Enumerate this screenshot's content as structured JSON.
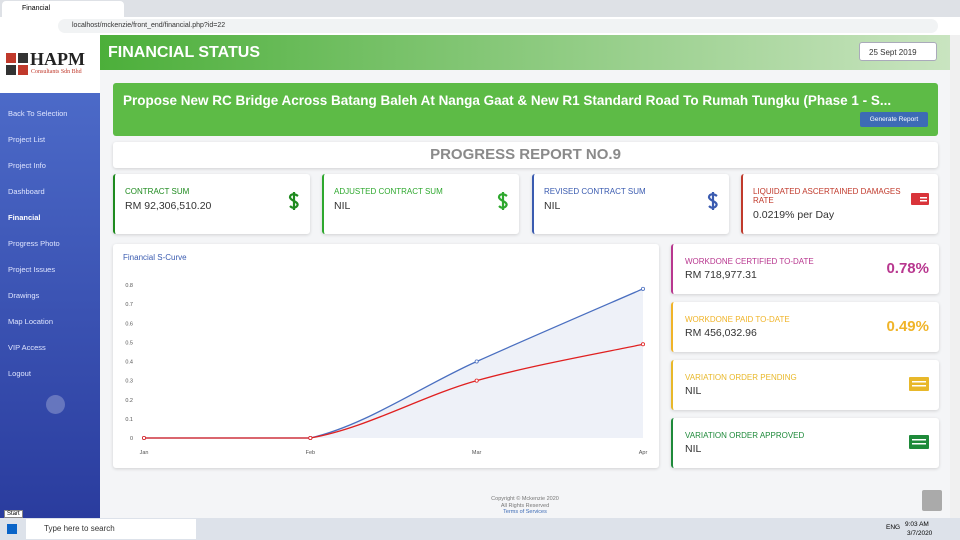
{
  "browser": {
    "tab": "Financial",
    "url": "localhost/mckenzie/front_end/financial.php?id=22"
  },
  "sidebar": {
    "logo": "HAPM",
    "company": "Consultants Sdn Bhd",
    "menu": [
      "Back To Selection",
      "Project List",
      "Project Info",
      "Dashboard",
      "Financial",
      "Progress Photo",
      "Project Issues",
      "Drawings",
      "Map Location",
      "VIP Access",
      "Logout"
    ],
    "active": 4
  },
  "header": {
    "title": "FINANCIAL STATUS",
    "date": "25 Sept 2019"
  },
  "project": {
    "title": "Propose New RC Bridge Across Batang Baleh At Nanga Gaat & New R1 Standard Road To Rumah Tungku (Phase 1 - S...",
    "button": "Generate Report"
  },
  "report": "PROGRESS REPORT NO.9",
  "cards": [
    {
      "label": "CONTRACT SUM",
      "value": "RM 92,306,510.20"
    },
    {
      "label": "ADJUSTED CONTRACT SUM",
      "value": "NIL"
    },
    {
      "label": "REVISED CONTRACT SUM",
      "value": "NIL"
    },
    {
      "label": "LIQUIDATED ASCERTAINED DAMAGES RATE",
      "value": "0.0219% per Day"
    }
  ],
  "side_cards": [
    {
      "label": "WORKDONE CERTIFIED TO-DATE",
      "value": "RM 718,977.31",
      "percent": "0.78%"
    },
    {
      "label": "WORKDONE PAID TO-DATE",
      "value": "RM 456,032.96",
      "percent": "0.49%"
    },
    {
      "label": "VARIATION ORDER PENDING",
      "value": "NIL"
    },
    {
      "label": "VARIATION ORDER APPROVED",
      "value": "NIL"
    }
  ],
  "chart": {
    "type": "line",
    "title": "Financial S-Curve",
    "categories": [
      "Jan",
      "Feb",
      "Mar",
      "Apr"
    ],
    "series": [
      {
        "color": "#4a6fc0",
        "values": [
          0,
          0,
          0.4,
          0.78
        ]
      },
      {
        "color": "#e02020",
        "values": [
          0,
          0,
          0.3,
          0.49
        ]
      }
    ],
    "ylim": [
      0,
      0.8
    ],
    "yticks": [
      0,
      0.1,
      0.2,
      0.3,
      0.4,
      0.5,
      0.6,
      0.7,
      0.8
    ],
    "grid": false
  },
  "footer": [
    "Copyright © Mckenzie 2020",
    "All Rights Reserved",
    "Terms of Services"
  ],
  "taskbar": {
    "start": "Start",
    "search": "Type here to search",
    "lang": "ENG",
    "time": "9:03 AM",
    "date": "3/7/2020"
  }
}
